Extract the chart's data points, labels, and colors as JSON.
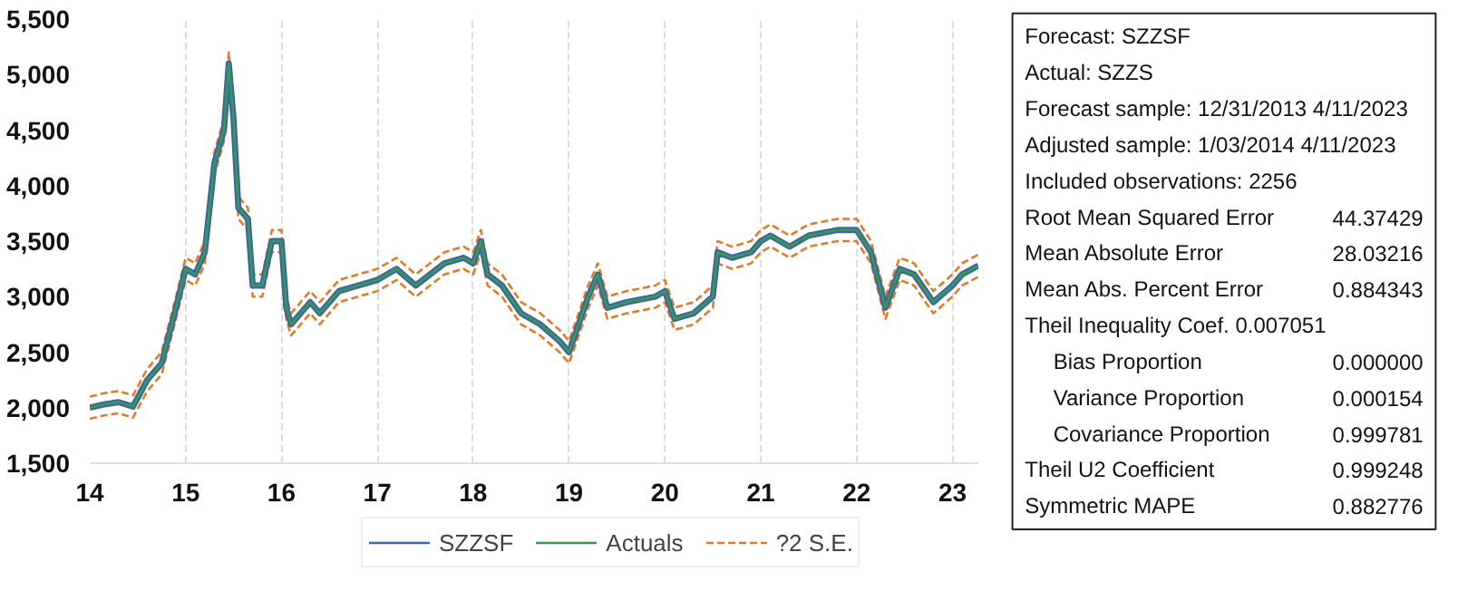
{
  "chart_data": {
    "type": "line",
    "x": [
      2014.0,
      2014.15,
      2014.3,
      2014.45,
      2014.6,
      2014.75,
      2014.9,
      2015.0,
      2015.1,
      2015.2,
      2015.3,
      2015.4,
      2015.45,
      2015.5,
      2015.55,
      2015.65,
      2015.7,
      2015.8,
      2015.9,
      2016.0,
      2016.05,
      2016.1,
      2016.3,
      2016.4,
      2016.6,
      2016.8,
      2017.0,
      2017.2,
      2017.4,
      2017.7,
      2017.9,
      2018.0,
      2018.08,
      2018.15,
      2018.3,
      2018.5,
      2018.7,
      2018.9,
      2019.0,
      2019.2,
      2019.3,
      2019.4,
      2019.6,
      2019.9,
      2020.0,
      2020.1,
      2020.3,
      2020.5,
      2020.55,
      2020.7,
      2020.9,
      2021.0,
      2021.1,
      2021.3,
      2021.5,
      2021.8,
      2022.0,
      2022.15,
      2022.3,
      2022.45,
      2022.6,
      2022.8,
      2023.0,
      2023.1,
      2023.27
    ],
    "series": [
      {
        "name": "?2 S.E.",
        "color": "#e07b28",
        "line_style": "dashed",
        "values": [
          2100,
          2130,
          2150,
          2110,
          2350,
          2500,
          3000,
          3350,
          3300,
          3500,
          4300,
          4600,
          5200,
          4700,
          3900,
          3800,
          3200,
          3200,
          3600,
          3600,
          3000,
          2850,
          3050,
          2950,
          3150,
          3200,
          3250,
          3350,
          3200,
          3400,
          3450,
          3400,
          3600,
          3300,
          3200,
          2950,
          2850,
          2700,
          2600,
          3100,
          3300,
          3000,
          3050,
          3100,
          3150,
          2900,
          2950,
          3100,
          3500,
          3450,
          3500,
          3600,
          3650,
          3550,
          3650,
          3700,
          3700,
          3500,
          3000,
          3350,
          3300,
          3050,
          3200,
          3300,
          3380
        ]
      },
      {
        "color": "#e07b28",
        "line_style": "dashed",
        "values": [
          1900,
          1930,
          1950,
          1910,
          2150,
          2300,
          2800,
          3150,
          3100,
          3300,
          4100,
          4400,
          5000,
          4500,
          3700,
          3600,
          3000,
          3000,
          3400,
          3400,
          2800,
          2650,
          2850,
          2750,
          2950,
          3000,
          3050,
          3150,
          3000,
          3200,
          3250,
          3200,
          3400,
          3100,
          3000,
          2750,
          2650,
          2500,
          2400,
          2900,
          3100,
          2800,
          2850,
          2900,
          2950,
          2700,
          2750,
          2900,
          3300,
          3250,
          3300,
          3400,
          3450,
          3350,
          3450,
          3500,
          3500,
          3300,
          2800,
          3150,
          3100,
          2850,
          3000,
          3100,
          3180
        ]
      },
      {
        "name": "SZZSF",
        "color": "#3b64ad",
        "line_style": "solid",
        "values": [
          2000,
          2030,
          2050,
          2010,
          2250,
          2400,
          2900,
          3250,
          3200,
          3400,
          4200,
          4500,
          5100,
          4600,
          3800,
          3700,
          3100,
          3100,
          3500,
          3500,
          2900,
          2750,
          2950,
          2850,
          3050,
          3100,
          3150,
          3250,
          3100,
          3300,
          3350,
          3300,
          3500,
          3200,
          3100,
          2850,
          2750,
          2600,
          2500,
          3000,
          3200,
          2900,
          2950,
          3000,
          3050,
          2800,
          2850,
          3000,
          3400,
          3350,
          3400,
          3500,
          3550,
          3450,
          3550,
          3600,
          3600,
          3400,
          2900,
          3250,
          3200,
          2950,
          3100,
          3200,
          3280
        ]
      },
      {
        "name": "Actuals",
        "color": "#3a9a4a",
        "line_style": "solid",
        "values": [
          2000,
          2030,
          2050,
          2010,
          2250,
          2400,
          2900,
          3250,
          3200,
          3400,
          4200,
          4500,
          5100,
          4600,
          3800,
          3700,
          3100,
          3100,
          3500,
          3500,
          2900,
          2750,
          2950,
          2850,
          3050,
          3100,
          3150,
          3250,
          3100,
          3300,
          3350,
          3300,
          3500,
          3200,
          3100,
          2850,
          2750,
          2600,
          2500,
          3000,
          3200,
          2900,
          2950,
          3000,
          3050,
          2800,
          2850,
          3000,
          3400,
          3350,
          3400,
          3500,
          3550,
          3450,
          3550,
          3600,
          3600,
          3400,
          2900,
          3250,
          3200,
          2950,
          3100,
          3200,
          3280
        ]
      }
    ],
    "xlim": [
      2014.0,
      2023.27
    ],
    "xticks": [
      {
        "value": 2014,
        "label": "14"
      },
      {
        "value": 2015,
        "label": "15"
      },
      {
        "value": 2016,
        "label": "16"
      },
      {
        "value": 2017,
        "label": "17"
      },
      {
        "value": 2018,
        "label": "18"
      },
      {
        "value": 2019,
        "label": "19"
      },
      {
        "value": 2020,
        "label": "20"
      },
      {
        "value": 2021,
        "label": "21"
      },
      {
        "value": 2022,
        "label": "22"
      },
      {
        "value": 2023,
        "label": "23"
      }
    ],
    "ylim": [
      1500,
      5500
    ],
    "yticks": [
      {
        "value": 1500,
        "label": "1,500"
      },
      {
        "value": 2000,
        "label": "2,000"
      },
      {
        "value": 2500,
        "label": "2,500"
      },
      {
        "value": 3000,
        "label": "3,000"
      },
      {
        "value": 3500,
        "label": "3,500"
      },
      {
        "value": 4000,
        "label": "4,000"
      },
      {
        "value": 4500,
        "label": "4,500"
      },
      {
        "value": 5000,
        "label": "5,000"
      },
      {
        "value": 5500,
        "label": "5,500"
      }
    ],
    "grid": "x",
    "legend": "bottom",
    "annotations": [
      "Forecast: SZZSF",
      "Actual: SZZS",
      "Forecast sample: 12/31/2013 4/11/2023",
      "Adjusted sample: 1/03/2014 4/11/2023",
      "Included observations: 2256",
      "Root Mean Squared Error",
      "44.37429",
      "Mean Absolute Error",
      "28.03216",
      "Mean Abs. Percent Error",
      "0.884343",
      "Theil Inequality Coef.   0.007051",
      "Bias Proportion",
      "0.000000",
      "Variance Proportion",
      "0.000154",
      "Covariance Proportion",
      "0.999781",
      "Theil U2 Coefficient",
      "0.999248",
      "Symmetric MAPE",
      "0.882776"
    ]
  }
}
